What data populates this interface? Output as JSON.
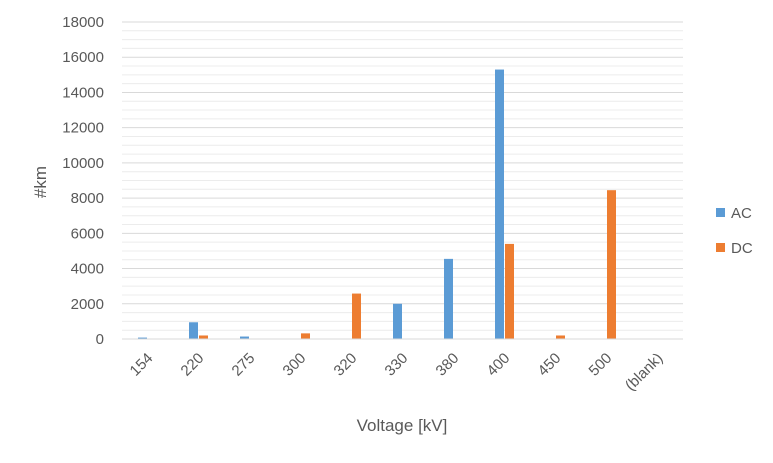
{
  "chart_data": {
    "type": "bar",
    "title": "",
    "xlabel": "Voltage [kV]",
    "ylabel": "#km",
    "ylim": [
      0,
      18000
    ],
    "yticks": [
      0,
      2000,
      4000,
      6000,
      8000,
      10000,
      12000,
      14000,
      16000,
      18000
    ],
    "grid": true,
    "legend_position": "right",
    "categories": [
      "154",
      "220",
      "275",
      "300",
      "320",
      "330",
      "380",
      "400",
      "450",
      "500",
      "(blank)"
    ],
    "series": [
      {
        "name": "AC",
        "color": "#5B9BD5",
        "values": [
          80,
          950,
          140,
          0,
          0,
          2000,
          4550,
          15300,
          0,
          0,
          0
        ]
      },
      {
        "name": "DC",
        "color": "#ED7D31",
        "values": [
          0,
          200,
          0,
          320,
          2580,
          0,
          0,
          5400,
          200,
          8450,
          0
        ]
      }
    ]
  }
}
